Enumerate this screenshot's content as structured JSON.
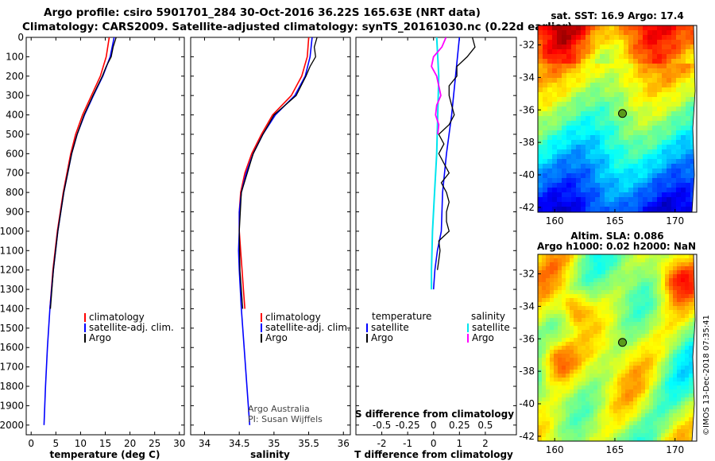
{
  "header": {
    "line1": "Argo profile: csiro 5901701_284 30-Oct-2016 36.22S 165.63E (NRT data)",
    "line2": "Climatology: CARS2009. Satellite-adjusted climatology: synTS_20161030.nc (0.22d earlier)"
  },
  "credit": "©IMOS 13-Dec-2018 07:35:41",
  "colors": {
    "climatology": "#ff0000",
    "satellite": "#0000ff",
    "argo": "#000000",
    "sat_salinity": "#00e5ee",
    "argo_salinity": "#ff00ff",
    "marker": "#5a9a1a"
  },
  "chart_data": [
    {
      "type": "line",
      "id": "temperature",
      "xlabel": "temperature (deg C)",
      "xlim": [
        -1,
        31
      ],
      "xticks": [
        0,
        5,
        10,
        15,
        20,
        25,
        30
      ],
      "ylim": [
        2050,
        0
      ],
      "yticks": [
        0,
        100,
        200,
        300,
        400,
        500,
        600,
        700,
        800,
        900,
        1000,
        1100,
        1200,
        1300,
        1400,
        1500,
        1600,
        1700,
        1800,
        1900,
        2000
      ],
      "legend": [
        "climatology",
        "satellite-adj. clim.",
        "Argo"
      ],
      "series": [
        {
          "name": "climatology",
          "depth": [
            0,
            100,
            200,
            300,
            400,
            500,
            600,
            800,
            1000,
            1200,
            1400
          ],
          "values": [
            15.8,
            15.2,
            14.0,
            12.2,
            10.4,
            9.0,
            8.0,
            6.5,
            5.3,
            4.4,
            3.8
          ]
        },
        {
          "name": "satellite-adj. clim.",
          "depth": [
            0,
            100,
            200,
            300,
            400,
            500,
            600,
            800,
            1000,
            1200,
            1400,
            1600,
            1800,
            2000
          ],
          "values": [
            16.8,
            16.0,
            14.5,
            12.6,
            10.8,
            9.3,
            8.2,
            6.6,
            5.4,
            4.5,
            3.8,
            3.3,
            2.9,
            2.6
          ]
        },
        {
          "name": "Argo",
          "depth": [
            0,
            50,
            100,
            150,
            200,
            300,
            400,
            500,
            600,
            800,
            1000,
            1200,
            1400
          ],
          "values": [
            17.2,
            16.6,
            16.2,
            15.2,
            14.4,
            12.5,
            10.7,
            9.3,
            8.2,
            6.6,
            5.4,
            4.5,
            3.9
          ]
        }
      ]
    },
    {
      "type": "line",
      "id": "salinity",
      "xlabel": "salinity",
      "xlim": [
        33.8,
        36.1
      ],
      "xticks": [
        34,
        34.5,
        35,
        35.5,
        36
      ],
      "ylim": [
        2050,
        0
      ],
      "legend": [
        "climatology",
        "satellite-adj. clim.",
        "Argo"
      ],
      "annotation": [
        "Argo Australia",
        "PI: Susan Wijffels"
      ],
      "series": [
        {
          "name": "climatology",
          "depth": [
            0,
            100,
            200,
            300,
            400,
            500,
            600,
            700,
            800,
            900,
            1000,
            1100,
            1200,
            1300,
            1400
          ],
          "values": [
            35.5,
            35.48,
            35.4,
            35.25,
            34.98,
            34.82,
            34.68,
            34.58,
            34.52,
            34.5,
            34.5,
            34.52,
            34.54,
            34.56,
            34.58
          ]
        },
        {
          "name": "satellite-adj. clim.",
          "depth": [
            0,
            100,
            200,
            300,
            400,
            500,
            600,
            700,
            800,
            900,
            1000,
            1100,
            1200,
            1400,
            1600,
            1800,
            2000
          ],
          "values": [
            35.55,
            35.52,
            35.45,
            35.3,
            35.02,
            34.84,
            34.7,
            34.6,
            34.53,
            34.5,
            34.5,
            34.49,
            34.5,
            34.53,
            34.57,
            34.61,
            34.65
          ]
        },
        {
          "name": "Argo",
          "depth": [
            0,
            50,
            100,
            150,
            200,
            300,
            400,
            500,
            600,
            800,
            1000,
            1200,
            1400
          ],
          "values": [
            35.62,
            35.58,
            35.6,
            35.52,
            35.46,
            35.32,
            35.0,
            34.84,
            34.7,
            34.53,
            34.5,
            34.51,
            34.55
          ]
        }
      ]
    },
    {
      "type": "line",
      "id": "difference",
      "xlabel": "T difference from climatology",
      "xlabel_top": "S difference from climatology",
      "xlim": [
        -3,
        3.2
      ],
      "xticks": [
        -2,
        -1,
        0,
        1,
        2
      ],
      "top_ticks": [
        -0.5,
        -0.25,
        0,
        0.25,
        0.5
      ],
      "legend_left_title": "temperature",
      "legend_right_title": "salinity",
      "legend_left": [
        "satellite",
        "Argo"
      ],
      "legend_right": [
        "satellite",
        "Argo"
      ],
      "series": [
        {
          "name": "T satellite",
          "depth": [
            0,
            200,
            400,
            600,
            800,
            1000,
            1100,
            1200,
            1300
          ],
          "values": [
            1.0,
            0.85,
            0.7,
            0.5,
            0.35,
            0.3,
            0.15,
            0.05,
            0.0
          ]
        },
        {
          "name": "T Argo",
          "depth": [
            0,
            50,
            100,
            150,
            200,
            250,
            300,
            350,
            400,
            450,
            500,
            550,
            600,
            650,
            700,
            750,
            800,
            850,
            900,
            950,
            1000,
            1050,
            1100,
            1150,
            1200
          ],
          "values": [
            1.5,
            1.6,
            1.3,
            0.9,
            0.9,
            0.6,
            0.6,
            0.7,
            0.8,
            0.6,
            0.2,
            0.4,
            0.2,
            0.4,
            0.6,
            0.3,
            0.5,
            0.6,
            0.5,
            0.5,
            0.6,
            0.2,
            0.25,
            0.2,
            0.15
          ]
        },
        {
          "name": "S satellite",
          "depth": [
            0,
            200,
            400,
            600,
            800,
            1000,
            1200,
            1300
          ],
          "values": [
            0.03,
            0.05,
            0.04,
            0.03,
            0.01,
            -0.01,
            -0.02,
            -0.02
          ]
        },
        {
          "name": "S Argo",
          "depth": [
            0,
            50,
            100,
            150,
            200,
            250,
            300,
            350,
            400,
            450,
            500
          ],
          "values": [
            0.12,
            0.08,
            0.0,
            -0.02,
            0.03,
            0.05,
            0.07,
            0.03,
            0.02,
            0.05,
            0.04
          ]
        }
      ]
    },
    {
      "type": "heatmap",
      "id": "sst_map",
      "title": "sat. SST: 16.9 Argo: 17.4",
      "xticks": [
        160,
        165,
        170
      ],
      "yticks": [
        -32,
        -34,
        -36,
        -38,
        -40,
        -42
      ],
      "marker": [
        165.63,
        -36.22
      ]
    },
    {
      "type": "heatmap",
      "id": "sla_map",
      "title_line1": "Altim. SLA: 0.086",
      "title_line2": "Argo h1000: 0.02 h2000: NaN",
      "xticks": [
        160,
        165,
        170
      ],
      "yticks": [
        -32,
        -34,
        -36,
        -38,
        -40,
        -42
      ],
      "marker": [
        165.63,
        -36.22
      ]
    }
  ]
}
